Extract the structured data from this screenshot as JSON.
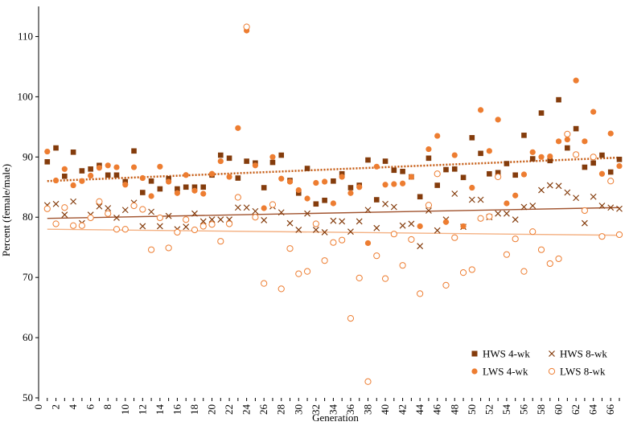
{
  "chart_data": {
    "type": "scatter",
    "title": "",
    "xlabel": "Generation",
    "ylabel": "Percent (female/male)",
    "xlim": [
      0,
      67
    ],
    "ylim": [
      50,
      115
    ],
    "x_ticks": [
      0,
      1,
      2,
      3,
      4,
      5,
      6,
      7,
      8,
      9,
      10,
      11,
      12,
      13,
      14,
      15,
      16,
      17,
      18,
      19,
      20,
      21,
      22,
      23,
      24,
      25,
      26,
      27,
      28,
      29,
      30,
      31,
      32,
      33,
      34,
      35,
      36,
      37,
      38,
      39,
      40,
      41,
      42,
      43,
      44,
      45,
      46,
      47,
      48,
      49,
      50,
      51,
      52,
      53,
      54,
      55,
      56,
      57,
      58,
      59,
      60,
      61,
      62,
      63,
      64,
      65,
      66,
      67
    ],
    "x_tick_labels": [
      "0",
      "2",
      "4",
      "6",
      "8",
      "10",
      "12",
      "14",
      "16",
      "18",
      "20",
      "22",
      "24",
      "26",
      "28",
      "30",
      "32",
      "34",
      "36",
      "38",
      "40",
      "42",
      "44",
      "46",
      "48",
      "50",
      "52",
      "54",
      "56",
      "58",
      "60",
      "62",
      "64",
      "66"
    ],
    "y_ticks": [
      50,
      60,
      70,
      80,
      90,
      100,
      110
    ],
    "legend_position": "bottom-right",
    "series": [
      {
        "name": "HWS 4-wk",
        "marker": "filled-square",
        "color": "#843c0c",
        "points": [
          [
            1,
            89.2
          ],
          [
            2,
            91.5
          ],
          [
            3,
            86.8
          ],
          [
            4,
            90.8
          ],
          [
            5,
            87.7
          ],
          [
            6,
            88.0
          ],
          [
            7,
            88.6
          ],
          [
            8,
            87.0
          ],
          [
            9,
            87.0
          ],
          [
            10,
            85.9
          ],
          [
            11,
            91.0
          ],
          [
            12,
            84.1
          ],
          [
            13,
            86.0
          ],
          [
            14,
            84.7
          ],
          [
            15,
            86.4
          ],
          [
            16,
            84.7
          ],
          [
            17,
            85.0
          ],
          [
            18,
            85.0
          ],
          [
            19,
            85.0
          ],
          [
            20,
            87.0
          ],
          [
            21,
            90.3
          ],
          [
            22,
            89.8
          ],
          [
            23,
            86.5
          ],
          [
            24,
            89.3
          ],
          [
            25,
            89.0
          ],
          [
            26,
            84.9
          ],
          [
            27,
            89.1
          ],
          [
            28,
            90.3
          ],
          [
            29,
            86.1
          ],
          [
            30,
            84.0
          ],
          [
            31,
            88.1
          ],
          [
            32,
            82.2
          ],
          [
            33,
            82.8
          ],
          [
            34,
            86.0
          ],
          [
            35,
            87.2
          ],
          [
            36,
            84.9
          ],
          [
            37,
            85.3
          ],
          [
            38,
            89.5
          ],
          [
            39,
            82.9
          ],
          [
            40,
            89.3
          ],
          [
            41,
            87.8
          ],
          [
            42,
            87.6
          ],
          [
            43,
            86.7
          ],
          [
            44,
            83.4
          ],
          [
            45,
            89.8
          ],
          [
            46,
            85.3
          ],
          [
            47,
            87.9
          ],
          [
            48,
            88.0
          ],
          [
            49,
            86.6
          ],
          [
            50,
            93.2
          ],
          [
            51,
            90.6
          ],
          [
            52,
            87.2
          ],
          [
            53,
            87.4
          ],
          [
            54,
            88.9
          ],
          [
            55,
            87.0
          ],
          [
            56,
            93.6
          ],
          [
            57,
            89.7
          ],
          [
            58,
            97.3
          ],
          [
            59,
            89.4
          ],
          [
            60,
            99.5
          ],
          [
            61,
            91.5
          ],
          [
            62,
            94.7
          ],
          [
            63,
            88.3
          ],
          [
            64,
            89.0
          ],
          [
            65,
            90.3
          ],
          [
            66,
            87.5
          ],
          [
            67,
            89.6
          ]
        ]
      },
      {
        "name": "HWS 8-wk",
        "marker": "x",
        "color": "#843c0c",
        "points": [
          [
            1,
            82.0
          ],
          [
            2,
            82.2
          ],
          [
            3,
            80.4
          ],
          [
            4,
            82.6
          ],
          [
            5,
            79.0
          ],
          [
            6,
            80.4
          ],
          [
            7,
            81.8
          ],
          [
            8,
            81.5
          ],
          [
            9,
            79.9
          ],
          [
            10,
            81.2
          ],
          [
            11,
            82.4
          ],
          [
            12,
            78.5
          ],
          [
            13,
            80.9
          ],
          [
            14,
            78.5
          ],
          [
            15,
            80.2
          ],
          [
            16,
            78.0
          ],
          [
            17,
            78.4
          ],
          [
            18,
            80.6
          ],
          [
            19,
            79.3
          ],
          [
            20,
            79.6
          ],
          [
            21,
            79.6
          ],
          [
            22,
            79.6
          ],
          [
            23,
            81.6
          ],
          [
            24,
            81.6
          ],
          [
            25,
            81.0
          ],
          [
            26,
            79.5
          ],
          [
            27,
            81.8
          ],
          [
            28,
            80.8
          ],
          [
            29,
            79.0
          ],
          [
            30,
            77.9
          ],
          [
            31,
            80.6
          ],
          [
            32,
            77.9
          ],
          [
            33,
            77.5
          ],
          [
            34,
            79.4
          ],
          [
            35,
            79.3
          ],
          [
            36,
            77.6
          ],
          [
            37,
            79.3
          ],
          [
            38,
            81.2
          ],
          [
            39,
            78.2
          ],
          [
            40,
            82.2
          ],
          [
            41,
            81.7
          ],
          [
            42,
            78.6
          ],
          [
            43,
            78.9
          ],
          [
            44,
            75.2
          ],
          [
            45,
            81.1
          ],
          [
            46,
            77.8
          ],
          [
            47,
            79.6
          ],
          [
            48,
            83.9
          ],
          [
            49,
            78.4
          ],
          [
            50,
            82.9
          ],
          [
            51,
            82.9
          ],
          [
            52,
            80.0
          ],
          [
            53,
            80.6
          ],
          [
            54,
            80.6
          ],
          [
            55,
            79.6
          ],
          [
            56,
            81.7
          ],
          [
            57,
            81.9
          ],
          [
            58,
            84.5
          ],
          [
            59,
            85.3
          ],
          [
            60,
            85.2
          ],
          [
            61,
            84.1
          ],
          [
            62,
            83.2
          ],
          [
            63,
            79.0
          ],
          [
            64,
            83.4
          ],
          [
            65,
            81.9
          ],
          [
            66,
            81.6
          ],
          [
            67,
            81.4
          ]
        ]
      },
      {
        "name": "LWS 4-wk",
        "marker": "filled-circle",
        "color": "#ed7d31",
        "points": [
          [
            1,
            90.9
          ],
          [
            2,
            86.1
          ],
          [
            3,
            88.0
          ],
          [
            4,
            85.3
          ],
          [
            5,
            86.0
          ],
          [
            6,
            86.9
          ],
          [
            7,
            88.2
          ],
          [
            8,
            88.6
          ],
          [
            9,
            88.3
          ],
          [
            10,
            85.4
          ],
          [
            11,
            88.3
          ],
          [
            12,
            86.5
          ],
          [
            13,
            83.5
          ],
          [
            14,
            88.4
          ],
          [
            15,
            85.9
          ],
          [
            16,
            84.0
          ],
          [
            17,
            87.0
          ],
          [
            18,
            84.4
          ],
          [
            19,
            83.9
          ],
          [
            20,
            87.2
          ],
          [
            21,
            89.3
          ],
          [
            22,
            86.7
          ],
          [
            23,
            94.8
          ],
          [
            24,
            111.0
          ],
          [
            25,
            88.6
          ],
          [
            26,
            81.5
          ],
          [
            27,
            90.0
          ],
          [
            28,
            86.4
          ],
          [
            29,
            85.9
          ],
          [
            30,
            84.5
          ],
          [
            31,
            83.1
          ],
          [
            32,
            85.7
          ],
          [
            33,
            85.9
          ],
          [
            34,
            82.3
          ],
          [
            35,
            86.7
          ],
          [
            36,
            84.0
          ],
          [
            37,
            85.0
          ],
          [
            38,
            75.7
          ],
          [
            39,
            88.4
          ],
          [
            40,
            85.4
          ],
          [
            41,
            85.5
          ],
          [
            42,
            85.6
          ],
          [
            43,
            86.7
          ],
          [
            44,
            78.5
          ],
          [
            45,
            91.3
          ],
          [
            46,
            93.5
          ],
          [
            47,
            79.2
          ],
          [
            48,
            90.3
          ],
          [
            49,
            78.5
          ],
          [
            50,
            84.9
          ],
          [
            51,
            97.8
          ],
          [
            52,
            91.0
          ],
          [
            53,
            96.2
          ],
          [
            54,
            82.3
          ],
          [
            55,
            83.6
          ],
          [
            56,
            87.1
          ],
          [
            57,
            90.8
          ],
          [
            58,
            90.0
          ],
          [
            59,
            90.1
          ],
          [
            60,
            92.6
          ],
          [
            61,
            92.9
          ],
          [
            62,
            102.7
          ],
          [
            63,
            92.6
          ],
          [
            64,
            97.5
          ],
          [
            65,
            87.2
          ],
          [
            66,
            93.9
          ],
          [
            67,
            88.5
          ]
        ]
      },
      {
        "name": "LWS 8-wk",
        "marker": "open-circle",
        "color": "#ed7d31",
        "points": [
          [
            1,
            81.4
          ],
          [
            2,
            78.9
          ],
          [
            3,
            81.6
          ],
          [
            4,
            78.6
          ],
          [
            5,
            78.6
          ],
          [
            6,
            79.9
          ],
          [
            7,
            82.6
          ],
          [
            8,
            80.6
          ],
          [
            9,
            78.0
          ],
          [
            10,
            78.0
          ],
          [
            11,
            81.9
          ],
          [
            12,
            81.3
          ],
          [
            13,
            74.6
          ],
          [
            14,
            79.9
          ],
          [
            15,
            74.9
          ],
          [
            16,
            77.5
          ],
          [
            17,
            79.6
          ],
          [
            18,
            77.9
          ],
          [
            19,
            78.5
          ],
          [
            20,
            78.8
          ],
          [
            21,
            76.0
          ],
          [
            22,
            78.9
          ],
          [
            23,
            83.3
          ],
          [
            24,
            111.6
          ],
          [
            25,
            80.0
          ],
          [
            26,
            69.0
          ],
          [
            27,
            82.1
          ],
          [
            28,
            68.1
          ],
          [
            29,
            74.8
          ],
          [
            30,
            70.6
          ],
          [
            31,
            71.0
          ],
          [
            32,
            78.9
          ],
          [
            33,
            72.8
          ],
          [
            34,
            75.8
          ],
          [
            35,
            76.2
          ],
          [
            36,
            63.2
          ],
          [
            37,
            69.9
          ],
          [
            38,
            52.7
          ],
          [
            39,
            73.6
          ],
          [
            40,
            69.8
          ],
          [
            41,
            77.2
          ],
          [
            42,
            72.0
          ],
          [
            43,
            76.3
          ],
          [
            44,
            67.3
          ],
          [
            45,
            82.0
          ],
          [
            46,
            87.2
          ],
          [
            47,
            68.7
          ],
          [
            48,
            76.6
          ],
          [
            49,
            70.8
          ],
          [
            50,
            71.3
          ],
          [
            51,
            79.8
          ],
          [
            52,
            80.1
          ],
          [
            53,
            86.7
          ],
          [
            54,
            73.8
          ],
          [
            55,
            76.4
          ],
          [
            56,
            71.0
          ],
          [
            57,
            77.6
          ],
          [
            58,
            74.6
          ],
          [
            59,
            72.3
          ],
          [
            60,
            73.1
          ],
          [
            61,
            93.8
          ],
          [
            62,
            90.4
          ],
          [
            63,
            81.1
          ],
          [
            64,
            90.0
          ],
          [
            65,
            76.8
          ],
          [
            66,
            86.0
          ],
          [
            67,
            77.1
          ]
        ]
      }
    ],
    "trendlines": [
      {
        "series": "HWS 4-wk",
        "style": "dotted",
        "color": "#c55a11",
        "start": [
          1,
          86.0
        ],
        "end": [
          67,
          89.9
        ]
      },
      {
        "series": "HWS 8-wk",
        "style": "solid",
        "color": "#a0522d",
        "start": [
          1,
          79.8
        ],
        "end": [
          67,
          81.6
        ]
      },
      {
        "series": "LWS 8-wk",
        "style": "solid",
        "color": "#f4b183",
        "start": [
          1,
          78.0
        ],
        "end": [
          67,
          77.0
        ]
      }
    ]
  }
}
